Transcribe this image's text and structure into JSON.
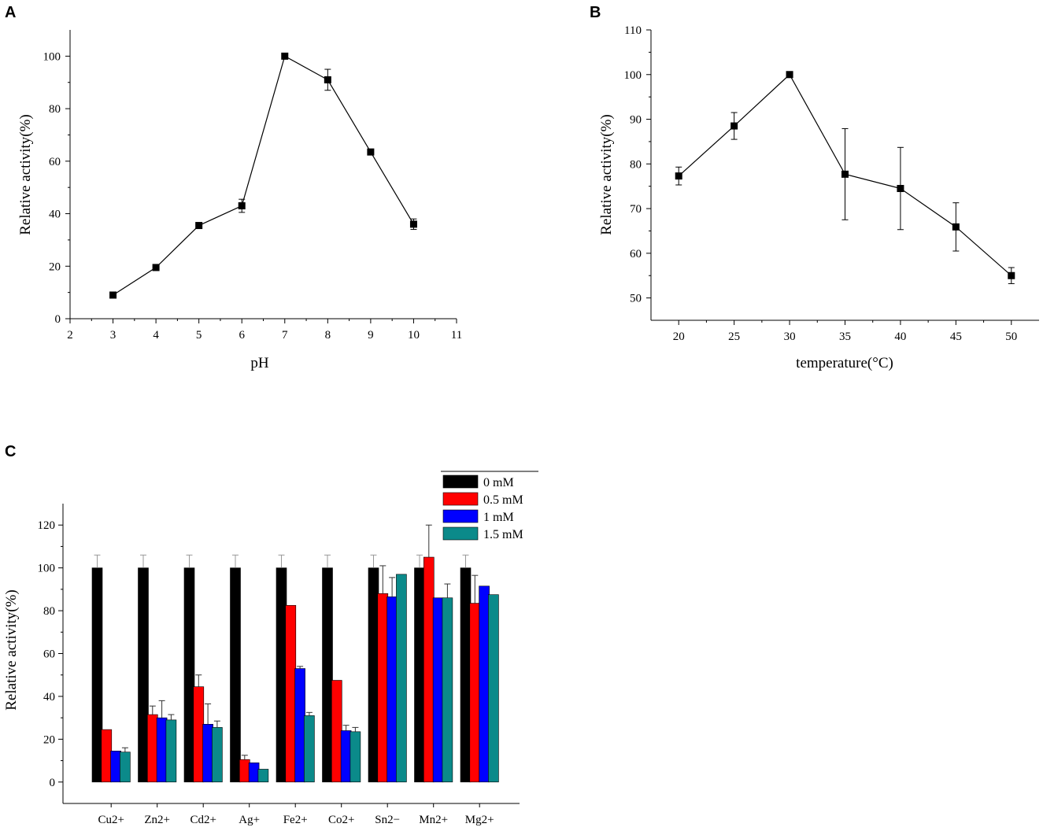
{
  "panels": {
    "A": {
      "letter": "A"
    },
    "B": {
      "letter": "B"
    },
    "C": {
      "letter": "C"
    }
  },
  "chart_data": [
    {
      "id": "A",
      "type": "line",
      "xlabel": "pH",
      "ylabel": "Relative activity(%)",
      "xlim": [
        2,
        11
      ],
      "ylim": [
        0,
        110
      ],
      "xticks": [
        2,
        3,
        4,
        5,
        6,
        7,
        8,
        9,
        10,
        11
      ],
      "yticks": [
        0,
        20,
        40,
        60,
        80,
        100
      ],
      "x": [
        3,
        4,
        5,
        6,
        7,
        8,
        9,
        10
      ],
      "y": [
        9,
        19.5,
        35.5,
        43,
        100,
        91,
        63.5,
        36
      ],
      "err": [
        0,
        0,
        0,
        2.5,
        0,
        4,
        0,
        2
      ],
      "marker": "square",
      "color": "#000000"
    },
    {
      "id": "B",
      "type": "line",
      "xlabel": "temperature(°C)",
      "ylabel": "Relative activity(%)",
      "xlim": [
        17.5,
        52.5
      ],
      "ylim": [
        45,
        110
      ],
      "xticks": [
        20,
        25,
        30,
        35,
        40,
        45,
        50
      ],
      "yticks": [
        50,
        60,
        70,
        80,
        90,
        100,
        110
      ],
      "x": [
        20,
        25,
        30,
        35,
        40,
        45,
        50
      ],
      "y": [
        77.3,
        88.5,
        100,
        77.7,
        74.5,
        65.9,
        55
      ],
      "err": [
        2,
        3,
        0,
        10.2,
        9.2,
        5.4,
        1.8
      ],
      "marker": "square",
      "color": "#000000"
    },
    {
      "id": "C",
      "type": "bar",
      "xlabel": "",
      "ylabel": "Relative activity(%)",
      "ylim": [
        -10,
        130
      ],
      "yticks": [
        0,
        20,
        40,
        60,
        80,
        100,
        120
      ],
      "categories": [
        "Cu2+",
        "Zn2+",
        "Cd2+",
        "Ag+",
        "Fe2+",
        "Co2+",
        "Sn2−",
        "Mn2+",
        "Mg2+"
      ],
      "series": [
        {
          "name": "0 mM",
          "color": "#000000",
          "values": [
            100,
            100,
            100,
            100,
            100,
            100,
            100,
            100,
            100
          ],
          "err": [
            6,
            6,
            6,
            6,
            6,
            6,
            6,
            6,
            6
          ]
        },
        {
          "name": "0.5 mM",
          "color": "#ff0000",
          "values": [
            24.5,
            31.5,
            44.5,
            10.5,
            82.5,
            47.5,
            88,
            105,
            83.5
          ],
          "err": [
            0,
            4,
            5.5,
            2,
            0,
            0,
            13,
            15,
            13
          ]
        },
        {
          "name": "1 mM",
          "color": "#0000ff",
          "values": [
            14.5,
            30,
            27,
            9,
            53,
            24,
            86.5,
            86,
            91.5
          ],
          "err": [
            0,
            8,
            9.5,
            0,
            1,
            2.5,
            9,
            0,
            0
          ]
        },
        {
          "name": "1.5 mM",
          "color": "#0b8a8a",
          "values": [
            14,
            29,
            25.5,
            6,
            31,
            23.5,
            97,
            86,
            87.5
          ],
          "err": [
            2,
            2.5,
            3,
            0,
            1.5,
            2,
            0,
            6.5,
            0
          ]
        }
      ],
      "legend": "top-right",
      "legend_labels": [
        "0 mM",
        "0.5 mM",
        "1 mM",
        "1.5 mM"
      ]
    }
  ]
}
